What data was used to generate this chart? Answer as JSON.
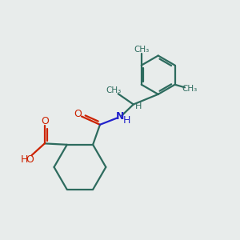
{
  "bg_color": "#e8eceb",
  "bond_color": "#2d6b5e",
  "o_color": "#cc2200",
  "n_color": "#2222cc",
  "line_width": 1.6,
  "fig_size": [
    3.0,
    3.0
  ],
  "dpi": 100,
  "xlim": [
    0,
    10
  ],
  "ylim": [
    0,
    10
  ]
}
